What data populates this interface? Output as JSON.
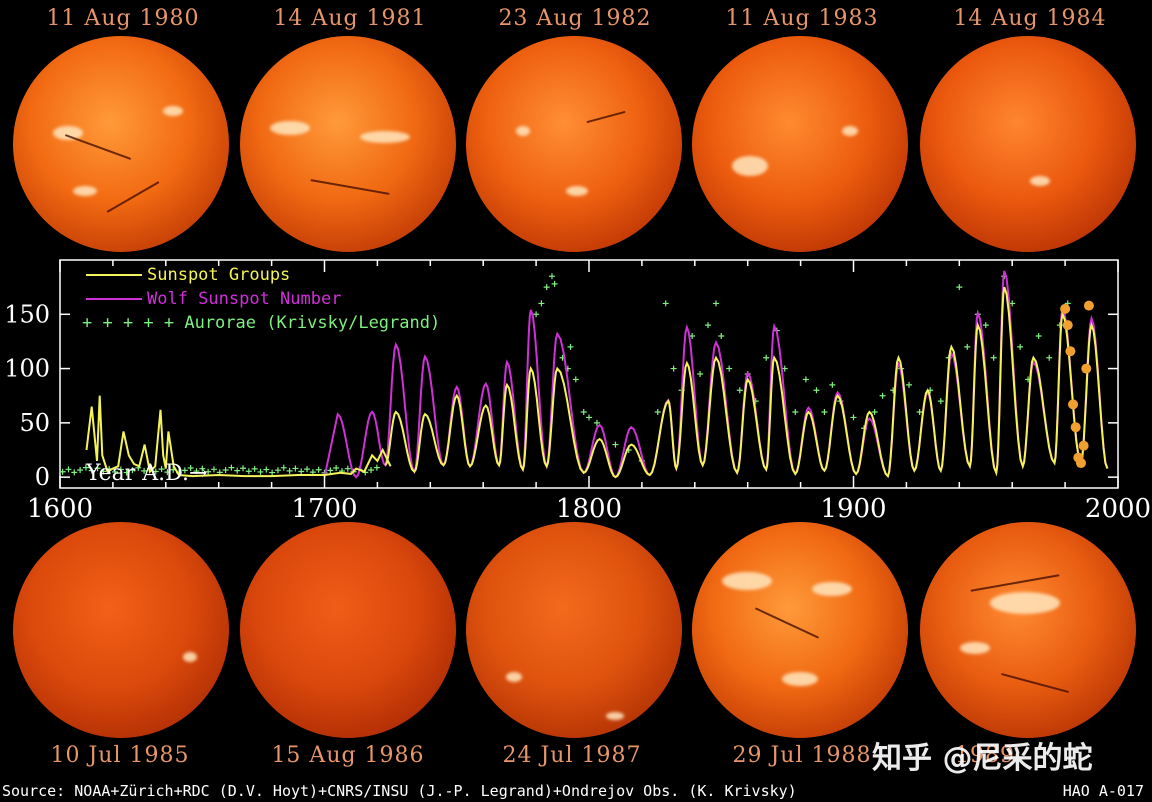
{
  "top_dates": [
    "11 Aug 1980",
    "14 Aug 1981",
    "23 Aug 1982",
    "11 Aug 1983",
    "14 Aug 1984"
  ],
  "bottom_dates": [
    "10 Jul 1985",
    "15 Aug 1986",
    "24 Jul 1987",
    "29 Jul 1988",
    "1989"
  ],
  "source_text": "Source: NOAA+Zürich+RDC (D.V. Hoyt)+CNRS/INSU (J.-P. Legrand)+Ondrejov Obs. (K. Krivsky)",
  "figure_id": "HAO A-017",
  "watermark": "知乎 @尼采的蛇",
  "colors": {
    "sunspot_groups": "#f4f45a",
    "wolf_number": "#d030d8",
    "aurorae": "#7ef07e",
    "recent": "#f0a030",
    "date_label": "#e8956a",
    "axis": "#ffffff"
  },
  "chart_data": {
    "type": "line",
    "xlim": [
      1600,
      2000
    ],
    "ylim": [
      -10,
      200
    ],
    "x_ticks": [
      1600,
      1700,
      1800,
      1900,
      2000
    ],
    "y_ticks": [
      0,
      50,
      100,
      150
    ],
    "axis_annotation": "Year A.D.→",
    "legend": [
      {
        "key": "sunspot_groups",
        "label": "Sunspot Groups",
        "marker": "line"
      },
      {
        "key": "wolf_number",
        "label": "Wolf Sunspot Number",
        "marker": "line"
      },
      {
        "key": "aurorae",
        "label": "+ + + + + Aurorae (Krivsky/Legrand)",
        "marker": "plus"
      }
    ],
    "sunspot_groups_early": [
      [
        1610,
        25
      ],
      [
        1612,
        65
      ],
      [
        1614,
        15
      ],
      [
        1615,
        75
      ],
      [
        1616,
        20
      ],
      [
        1618,
        5
      ],
      [
        1620,
        8
      ],
      [
        1622,
        10
      ],
      [
        1624,
        42
      ],
      [
        1626,
        20
      ],
      [
        1628,
        12
      ],
      [
        1630,
        10
      ],
      [
        1632,
        30
      ],
      [
        1634,
        5
      ],
      [
        1636,
        10
      ],
      [
        1638,
        62
      ],
      [
        1639,
        20
      ],
      [
        1640,
        8
      ],
      [
        1641,
        42
      ],
      [
        1643,
        10
      ],
      [
        1645,
        2
      ],
      [
        1650,
        1
      ],
      [
        1660,
        2
      ],
      [
        1670,
        1
      ],
      [
        1680,
        1
      ],
      [
        1690,
        2
      ],
      [
        1700,
        2
      ],
      [
        1706,
        4
      ],
      [
        1710,
        3
      ],
      [
        1712,
        8
      ],
      [
        1715,
        5
      ],
      [
        1718,
        20
      ],
      [
        1720,
        15
      ],
      [
        1722,
        25
      ],
      [
        1725,
        10
      ]
    ],
    "cycle_maxima": [
      [
        1705,
        58,
        35
      ],
      [
        1718,
        60,
        40
      ],
      [
        1727,
        122,
        60
      ],
      [
        1738,
        111,
        58
      ],
      [
        1750,
        83,
        75
      ],
      [
        1761,
        86,
        66
      ],
      [
        1769,
        106,
        85
      ],
      [
        1778,
        154,
        100
      ],
      [
        1788,
        132,
        100
      ],
      [
        1804,
        48,
        35
      ],
      [
        1816,
        46,
        30
      ],
      [
        1830,
        71,
        70
      ],
      [
        1837,
        138,
        105
      ],
      [
        1848,
        124,
        110
      ],
      [
        1860,
        96,
        90
      ],
      [
        1870,
        139,
        110
      ],
      [
        1883,
        64,
        60
      ],
      [
        1894,
        78,
        75
      ],
      [
        1906,
        54,
        60
      ],
      [
        1917,
        104,
        110
      ],
      [
        1928,
        78,
        80
      ],
      [
        1937,
        114,
        120
      ],
      [
        1947,
        151,
        140
      ],
      [
        1957,
        190,
        175
      ],
      [
        1968,
        106,
        110
      ],
      [
        1979,
        155,
        150
      ],
      [
        1990,
        146,
        140
      ]
    ],
    "cycle_minima": [
      [
        1712,
        0
      ],
      [
        1723,
        11
      ],
      [
        1734,
        5
      ],
      [
        1745,
        11
      ],
      [
        1755,
        10
      ],
      [
        1766,
        11
      ],
      [
        1775,
        7
      ],
      [
        1784,
        10
      ],
      [
        1798,
        4
      ],
      [
        1810,
        0
      ],
      [
        1823,
        2
      ],
      [
        1833,
        8
      ],
      [
        1843,
        11
      ],
      [
        1856,
        4
      ],
      [
        1867,
        7
      ],
      [
        1878,
        3
      ],
      [
        1889,
        6
      ],
      [
        1901,
        3
      ],
      [
        1913,
        1
      ],
      [
        1923,
        6
      ],
      [
        1933,
        6
      ],
      [
        1944,
        10
      ],
      [
        1954,
        4
      ],
      [
        1964,
        10
      ],
      [
        1976,
        13
      ],
      [
        1986,
        13
      ],
      [
        1996,
        8
      ]
    ],
    "recent_points": [
      [
        1980,
        155
      ],
      [
        1981,
        140
      ],
      [
        1982,
        116
      ],
      [
        1983,
        67
      ],
      [
        1984,
        46
      ],
      [
        1985,
        18
      ],
      [
        1986,
        13
      ],
      [
        1987,
        29
      ],
      [
        1988,
        100
      ],
      [
        1989,
        158
      ]
    ],
    "aurorae_points": [
      [
        1780,
        150
      ],
      [
        1782,
        160
      ],
      [
        1784,
        175
      ],
      [
        1786,
        185
      ],
      [
        1787,
        178
      ],
      [
        1790,
        110
      ],
      [
        1792,
        100
      ],
      [
        1793,
        120
      ],
      [
        1795,
        90
      ],
      [
        1798,
        60
      ],
      [
        1800,
        55
      ],
      [
        1803,
        50
      ],
      [
        1810,
        30
      ],
      [
        1815,
        25
      ],
      [
        1820,
        15
      ],
      [
        1826,
        60
      ],
      [
        1829,
        160
      ],
      [
        1832,
        100
      ],
      [
        1835,
        80
      ],
      [
        1839,
        130
      ],
      [
        1842,
        95
      ],
      [
        1845,
        140
      ],
      [
        1848,
        160
      ],
      [
        1850,
        130
      ],
      [
        1853,
        100
      ],
      [
        1857,
        80
      ],
      [
        1860,
        95
      ],
      [
        1863,
        70
      ],
      [
        1867,
        110
      ],
      [
        1871,
        135
      ],
      [
        1874,
        100
      ],
      [
        1878,
        60
      ],
      [
        1882,
        90
      ],
      [
        1886,
        80
      ],
      [
        1889,
        60
      ],
      [
        1892,
        85
      ],
      [
        1895,
        70
      ],
      [
        1900,
        55
      ],
      [
        1904,
        45
      ],
      [
        1908,
        60
      ],
      [
        1911,
        75
      ],
      [
        1915,
        80
      ],
      [
        1918,
        100
      ],
      [
        1921,
        85
      ],
      [
        1925,
        60
      ],
      [
        1929,
        80
      ],
      [
        1933,
        70
      ],
      [
        1936,
        110
      ],
      [
        1940,
        175
      ],
      [
        1943,
        120
      ],
      [
        1947,
        150
      ],
      [
        1950,
        140
      ],
      [
        1953,
        110
      ],
      [
        1957,
        185
      ],
      [
        1960,
        160
      ],
      [
        1963,
        120
      ],
      [
        1966,
        90
      ],
      [
        1970,
        130
      ],
      [
        1974,
        110
      ],
      [
        1978,
        140
      ],
      [
        1981,
        160
      ]
    ]
  }
}
